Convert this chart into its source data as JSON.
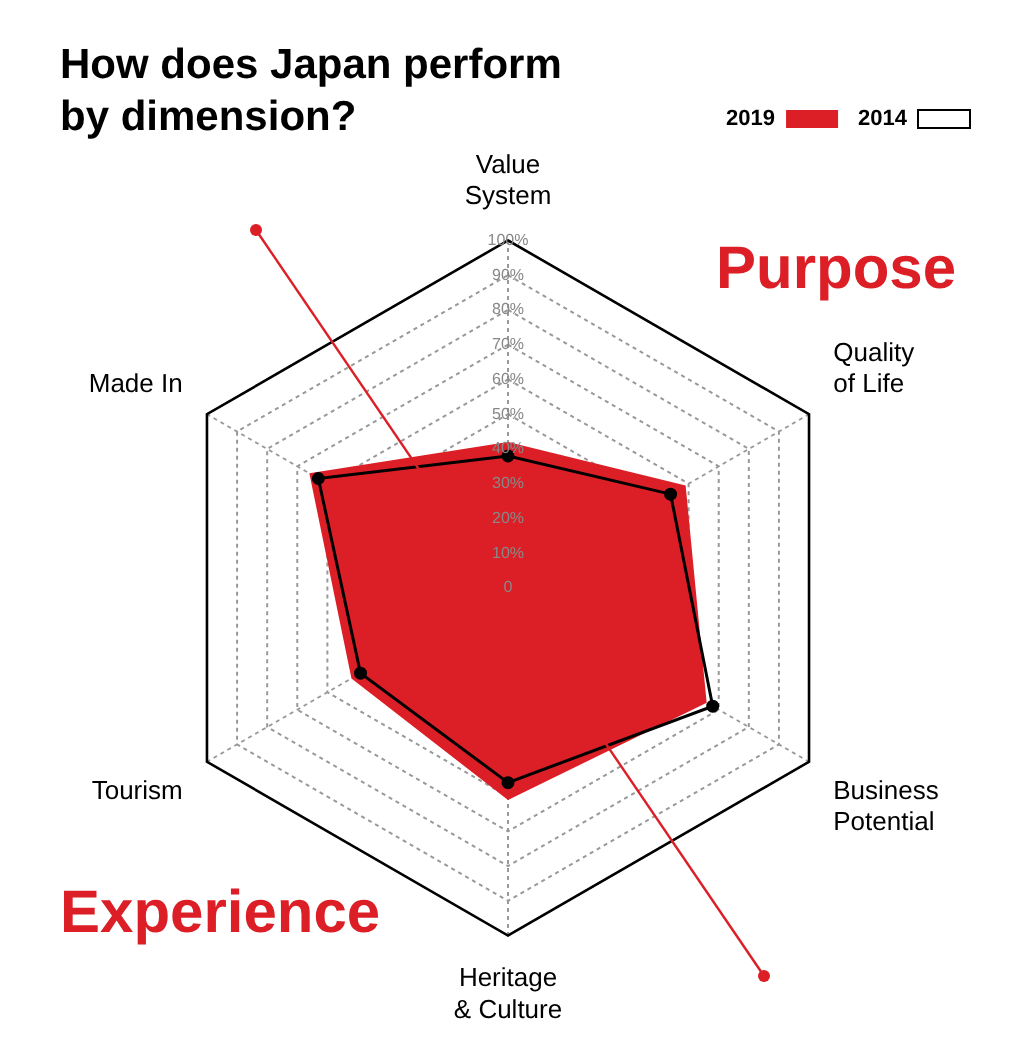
{
  "chart_data": {
    "type": "radar",
    "title": "How does Japan perform by dimension?",
    "categories": [
      "Value\nSystem",
      "Quality\nof Life",
      "Business\nPotential",
      "Heritage\n& Culture",
      "Tourism",
      "Made In"
    ],
    "series": [
      {
        "name": "2019",
        "color": "#dc1f26",
        "values": [
          42,
          59,
          66,
          61,
          52,
          66
        ]
      },
      {
        "name": "2014",
        "color": "#000000",
        "values": [
          38,
          54,
          68,
          56,
          49,
          63
        ],
        "marker": "circle"
      }
    ],
    "ylim": [
      0,
      100
    ],
    "yticks": [
      0,
      {
        "value": 10,
        "label": "10%"
      },
      {
        "value": 20,
        "label": "20%"
      },
      {
        "value": 30,
        "label": "30%"
      },
      {
        "value": 40,
        "label": "40%"
      },
      {
        "value": 50,
        "label": "50%"
      },
      {
        "value": 60,
        "label": "60%"
      },
      {
        "value": 70,
        "label": "70%"
      },
      {
        "value": 80,
        "label": "80%"
      },
      {
        "value": 90,
        "label": "90%"
      },
      {
        "value": 100,
        "label": "100%"
      }
    ],
    "grid": true,
    "legend": "top right",
    "annotations": [
      "Purpose",
      "Experience"
    ]
  }
}
